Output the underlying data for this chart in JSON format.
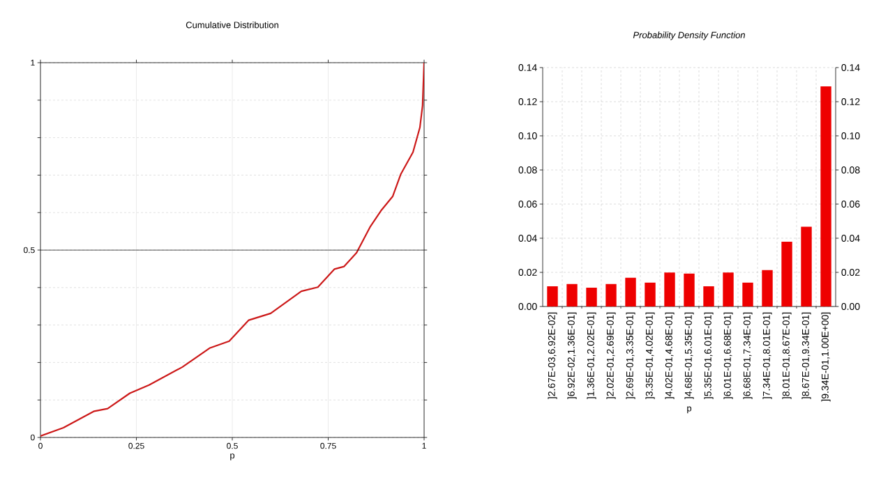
{
  "chart_data": [
    {
      "type": "line",
      "title": "Cumulative Distribution",
      "xlabel": "p",
      "color": "#cc1818",
      "x": [
        0,
        0.06,
        0.14,
        0.175,
        0.233,
        0.283,
        0.37,
        0.442,
        0.492,
        0.543,
        0.6,
        0.68,
        0.723,
        0.766,
        0.791,
        0.824,
        0.86,
        0.889,
        0.918,
        0.939,
        0.971,
        0.989,
        0.996,
        1
      ],
      "values": [
        0.004,
        0.026,
        0.07,
        0.077,
        0.118,
        0.14,
        0.188,
        0.239,
        0.257,
        0.313,
        0.331,
        0.39,
        0.401,
        0.449,
        0.456,
        0.493,
        0.563,
        0.607,
        0.643,
        0.702,
        0.761,
        0.827,
        0.886,
        1
      ],
      "xlim": [
        0,
        1
      ],
      "ylim": [
        0,
        1
      ],
      "xticks": [
        0,
        0.25,
        0.5,
        0.75,
        1
      ],
      "yticks": [
        0,
        {
          "value": 0.1,
          "label": null
        },
        {
          "value": 0.2,
          "label": null
        },
        {
          "value": 0.3,
          "label": null
        },
        {
          "value": 0.4,
          "label": null
        },
        0.5,
        {
          "value": 0.6,
          "label": null
        },
        {
          "value": 0.7,
          "label": null
        },
        {
          "value": 0.8,
          "label": null
        },
        {
          "value": 0.9,
          "label": null
        },
        1
      ],
      "ref_lines": [
        {
          "axis": "y",
          "value": 0.5,
          "color": "#000000"
        }
      ],
      "grid": true
    },
    {
      "type": "bar",
      "title": "*Probability Density Function*",
      "xlabel": "p",
      "color": "#ee0000",
      "categories": [
        "]2.67E-03,6.92E-02]",
        "]6.92E-02,1.36E-01]",
        "]1.36E-01,2.02E-01]",
        "]2.02E-01,2.69E-01]",
        "]2.69E-01,3.35E-01]",
        "]3.35E-01,4.02E-01]",
        "]4.02E-01,4.68E-01]",
        "]4.68E-01,5.35E-01]",
        "]5.35E-01,6.01E-01]",
        "]6.01E-01,6.68E-01]",
        "]6.68E-01,7.34E-01]",
        "]7.34E-01,8.01E-01]",
        "]8.01E-01,8.67E-01]",
        "]8.67E-01,9.34E-01]",
        "]9.34E-01,1.00E+00]"
      ],
      "values": [
        0.0118,
        0.0132,
        0.011,
        0.0132,
        0.0168,
        0.014,
        0.0199,
        0.0193,
        0.0118,
        0.0199,
        0.014,
        0.0213,
        0.038,
        0.0467,
        0.129
      ],
      "ylim": [
        0,
        0.14
      ],
      "yticks": [
        {
          "value": 0,
          "label": "0.00"
        },
        0.02,
        0.04,
        0.06,
        0.08,
        {
          "value": 0.1,
          "label": "0.10"
        },
        0.12,
        0.14
      ],
      "y2lim": [
        0,
        0.14
      ],
      "y2ticks": [
        {
          "value": 0,
          "label": "0.00"
        },
        0.02,
        0.04,
        0.06,
        0.08,
        {
          "value": 0.1,
          "label": "0.10"
        },
        0.12,
        0.14
      ],
      "grid": true
    }
  ]
}
